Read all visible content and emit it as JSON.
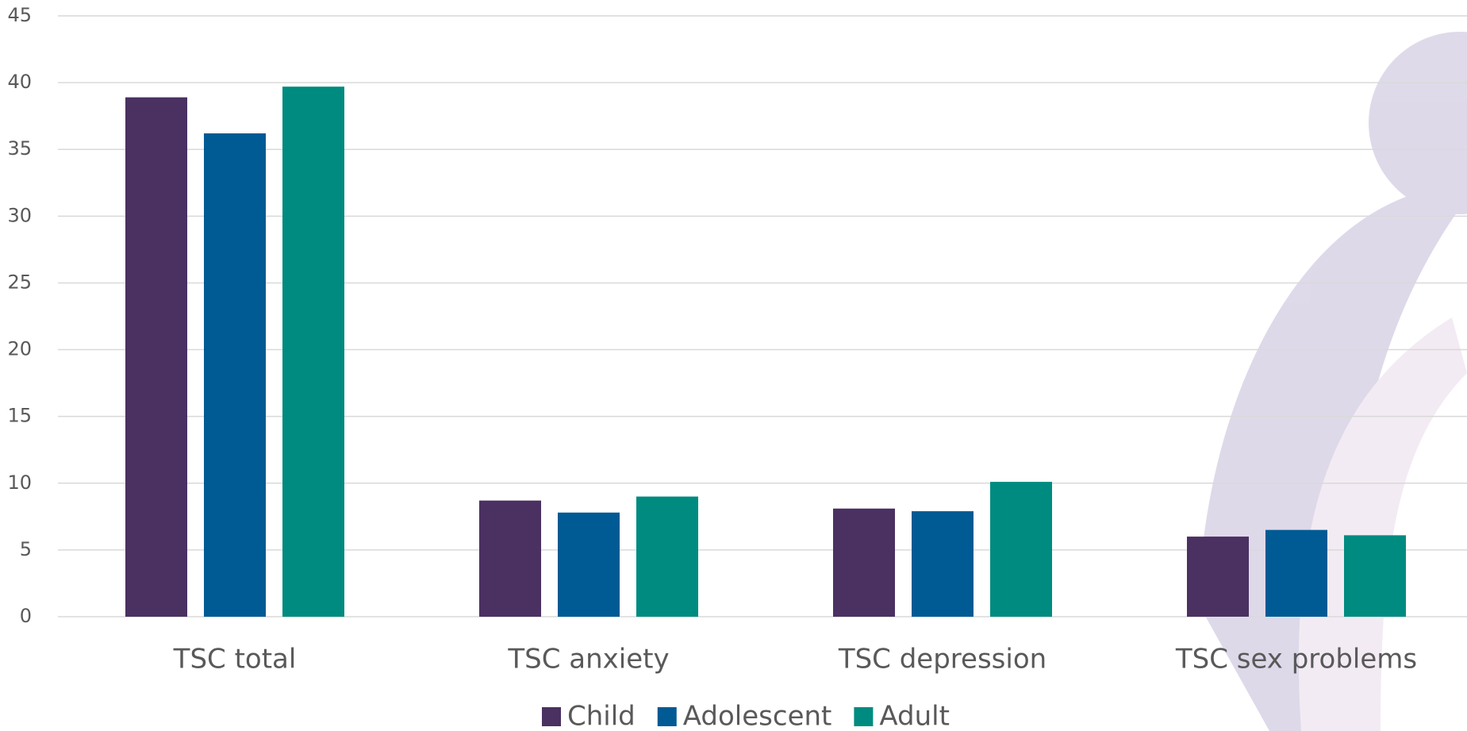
{
  "chart_data": {
    "type": "bar",
    "categories": [
      "TSC total",
      "TSC anxiety",
      "TSC depression",
      "TSC sex problems"
    ],
    "series": [
      {
        "name": "Child",
        "color": "#4b3062",
        "values": [
          38.9,
          8.7,
          8.1,
          6.0
        ]
      },
      {
        "name": "Adolescent",
        "color": "#005a94",
        "values": [
          36.2,
          7.8,
          7.9,
          6.5
        ]
      },
      {
        "name": "Adult",
        "color": "#008b80",
        "values": [
          39.7,
          9.0,
          10.1,
          6.1
        ]
      }
    ],
    "ylim": [
      0,
      45
    ],
    "yticks": [
      0,
      5,
      10,
      15,
      20,
      25,
      30,
      35,
      40,
      45
    ],
    "grid": true
  }
}
